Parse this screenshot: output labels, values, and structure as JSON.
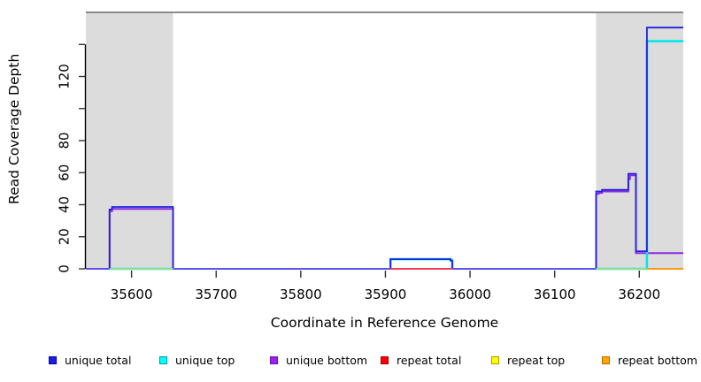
{
  "legend": {
    "items": [
      {
        "label": "unique total",
        "color": "#1C1CEC",
        "border": "#0000A8"
      },
      {
        "label": "unique top",
        "color": "#00FFFF",
        "border": "#00999E"
      },
      {
        "label": "unique bottom",
        "color": "#A020F0",
        "border": "#6A11A8"
      },
      {
        "label": "repeat total",
        "color": "#FF0000",
        "border": "#A80000"
      },
      {
        "label": "repeat top",
        "color": "#FFFF00",
        "border": "#9E9E00"
      },
      {
        "label": "repeat bottom",
        "color": "#FFA500",
        "border": "#B26B00"
      }
    ]
  },
  "chart_data": {
    "type": "line",
    "title": "",
    "xlabel": "Coordinate in Reference Genome",
    "ylabel": "Read Coverage Depth",
    "xlim": [
      35546,
      36252
    ],
    "ylim": [
      0,
      160
    ],
    "grid": false,
    "legend_position": "bottom",
    "x_ticks": [
      {
        "value": 35600,
        "label": "35600"
      },
      {
        "value": 35700,
        "label": "35700"
      },
      {
        "value": 35800,
        "label": "35800"
      },
      {
        "value": 35900,
        "label": "35900"
      },
      {
        "value": 36000,
        "label": "36000"
      },
      {
        "value": 36100,
        "label": "36100"
      },
      {
        "value": 36200,
        "label": "36200"
      }
    ],
    "y_ticks": [
      {
        "value": 0,
        "label": "0"
      },
      {
        "value": 20,
        "label": "20"
      },
      {
        "value": 40,
        "label": "40"
      },
      {
        "value": 60,
        "label": "60"
      },
      {
        "value": 80,
        "label": "80"
      },
      {
        "value": 100,
        "label": ""
      },
      {
        "value": 120,
        "label": "120"
      },
      {
        "value": 140,
        "label": ""
      }
    ],
    "shaded_regions": [
      {
        "x0": 35546,
        "x1": 35649,
        "fill": "#DCDCDC"
      },
      {
        "x0": 36149,
        "x1": 36252,
        "fill": "#DCDCDC"
      }
    ],
    "top_border": {
      "y": 160,
      "color": "#8A8A8A",
      "width": 2
    },
    "series": [
      {
        "name": "repeat total",
        "color": "#EE2C2C",
        "width": 1.8,
        "segments": [
          [
            [
              35546,
              0
            ],
            [
              36252,
              0
            ]
          ]
        ]
      },
      {
        "name": "repeat top",
        "color": "#FFFF00",
        "width": 1.8,
        "segments": [
          [
            [
              35574,
              0
            ],
            [
              35649,
              0
            ]
          ],
          [
            [
              36149,
              0
            ],
            [
              36209,
              0
            ]
          ]
        ]
      },
      {
        "name": "repeat bottom",
        "color": "#FF9912",
        "width": 2,
        "segments": [
          [
            [
              36209,
              0
            ],
            [
              36252,
              0
            ]
          ]
        ]
      },
      {
        "name": "unique bottom",
        "color": "#8B2BE2",
        "width": 2,
        "segments": [
          [
            [
              35546,
              0
            ],
            [
              35574,
              0
            ],
            [
              35574,
              36
            ],
            [
              35577,
              36
            ],
            [
              35577,
              37.4
            ],
            [
              35649,
              37.4
            ],
            [
              35649,
              0
            ],
            [
              36149,
              0
            ],
            [
              36149,
              46.8
            ],
            [
              36152,
              46.8
            ],
            [
              36152,
              47.4
            ],
            [
              36156,
              47.4
            ],
            [
              36156,
              48.3
            ],
            [
              36187,
              48.3
            ],
            [
              36187,
              56
            ],
            [
              36189,
              56
            ],
            [
              36189,
              58.3
            ],
            [
              36196,
              58.3
            ],
            [
              36196,
              9.8
            ],
            [
              36252,
              9.8
            ]
          ]
        ]
      },
      {
        "name": "unique top",
        "color": "#00E8E8",
        "width": 2.6,
        "segments": [
          [
            [
              35574,
              0
            ],
            [
              35649,
              0
            ]
          ],
          [
            [
              35906,
              0
            ],
            [
              35906,
              6
            ],
            [
              35977,
              6
            ],
            [
              35977,
              5.2
            ],
            [
              35979,
              5.2
            ],
            [
              35979,
              0
            ]
          ],
          [
            [
              36149,
              0
            ],
            [
              36209,
              0
            ],
            [
              36209,
              142
            ],
            [
              36252,
              142
            ]
          ]
        ]
      },
      {
        "name": "unique total",
        "color": "#2222DC",
        "width": 1.8,
        "segments": [
          [
            [
              35546,
              0
            ],
            [
              35574,
              0
            ],
            [
              35574,
              37
            ],
            [
              35577,
              37
            ],
            [
              35577,
              38.6
            ],
            [
              35649,
              38.6
            ],
            [
              35649,
              0
            ],
            [
              35906,
              0
            ],
            [
              35906,
              6
            ],
            [
              35977,
              6
            ],
            [
              35977,
              5.2
            ],
            [
              35979,
              5.2
            ],
            [
              35979,
              0
            ],
            [
              36149,
              0
            ],
            [
              36149,
              48.3
            ],
            [
              36156,
              48.3
            ],
            [
              36156,
              49.3
            ],
            [
              36187,
              49.3
            ],
            [
              36187,
              59.3
            ],
            [
              36196,
              59.3
            ],
            [
              36196,
              11
            ],
            [
              36209,
              11
            ],
            [
              36209,
              150.5
            ],
            [
              36252,
              150.5
            ]
          ]
        ]
      }
    ],
    "baseline_overlap_segments": [
      {
        "x0": 35546,
        "x1": 35574,
        "color": "#5C50EC",
        "note": "unique total over unique bottom at 0"
      },
      {
        "x0": 35649,
        "x1": 35906,
        "color": "#5C50EC",
        "note": "unique total over unique bottom at 0"
      },
      {
        "x0": 35979,
        "x1": 36149,
        "color": "#5C50EC",
        "note": "unique total over unique bottom at 0"
      },
      {
        "x0": 35574,
        "x1": 35649,
        "color": "#8FDC8F",
        "note": "repeat top over unique top at 0"
      },
      {
        "x0": 36149,
        "x1": 36209,
        "color": "#8FDC8F",
        "note": "repeat top over unique top at 0"
      },
      {
        "x0": 35906,
        "x1": 35979,
        "color": "#F23D55",
        "note": "repeat total visible at 0"
      },
      {
        "x0": 36209,
        "x1": 36252,
        "color": "#FF9912",
        "note": "repeat bottom visible at 0"
      }
    ],
    "axis": {
      "tick_color": "#333333",
      "line_color": "#000000",
      "tick_label_size": 15
    }
  }
}
